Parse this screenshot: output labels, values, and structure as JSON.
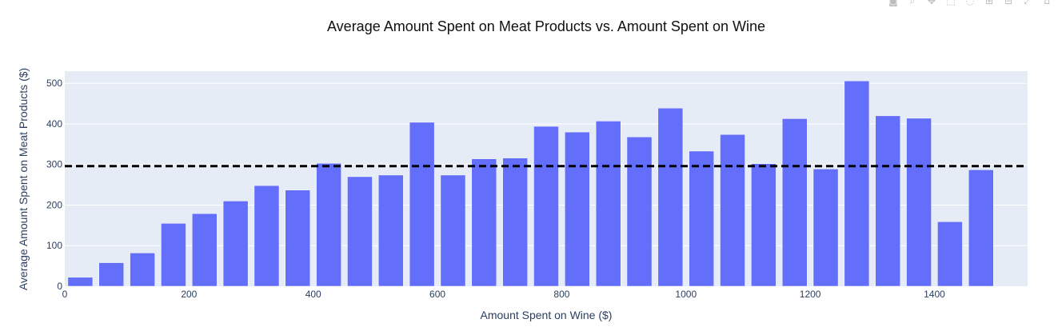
{
  "chart_data": {
    "type": "bar",
    "title": "Average Amount Spent on Meat Products vs. Amount Spent on Wine",
    "xlabel": "Amount Spent on Wine ($)",
    "ylabel": "Average Amount Spent on Meat Products ($)",
    "x": [
      25,
      75,
      125,
      175,
      225,
      275,
      325,
      375,
      425,
      475,
      525,
      575,
      625,
      675,
      725,
      775,
      825,
      875,
      925,
      975,
      1025,
      1075,
      1125,
      1175,
      1225,
      1275,
      1325,
      1375,
      1425,
      1475
    ],
    "values": [
      22,
      58,
      82,
      155,
      179,
      210,
      248,
      237,
      303,
      270,
      274,
      404,
      274,
      314,
      316,
      394,
      380,
      407,
      368,
      439,
      333,
      374,
      302,
      413,
      289,
      506,
      420,
      414,
      159,
      287
    ],
    "reference_line": {
      "value": 296,
      "style": "dashed",
      "color": "#000000"
    },
    "xlim": [
      0,
      1550
    ],
    "ylim": [
      0,
      530
    ],
    "xticks": [
      0,
      200,
      400,
      600,
      800,
      1000,
      1200,
      1400
    ],
    "yticks": [
      0,
      100,
      200,
      300,
      400,
      500
    ],
    "bar_color": "#636EFA",
    "plot_bg": "#E5ECF6",
    "grid": true,
    "legend": "none"
  },
  "modebar": {
    "icons": [
      "camera-icon",
      "zoom-icon",
      "pan-icon",
      "box-select-icon",
      "lasso-icon",
      "zoom-in-icon",
      "zoom-out-icon",
      "autoscale-icon",
      "reset-icon"
    ],
    "glyphs": [
      "◙",
      "⌕",
      "✥",
      "⬚",
      "◌",
      "⊞",
      "⊟",
      "⤢",
      "⌂"
    ]
  }
}
